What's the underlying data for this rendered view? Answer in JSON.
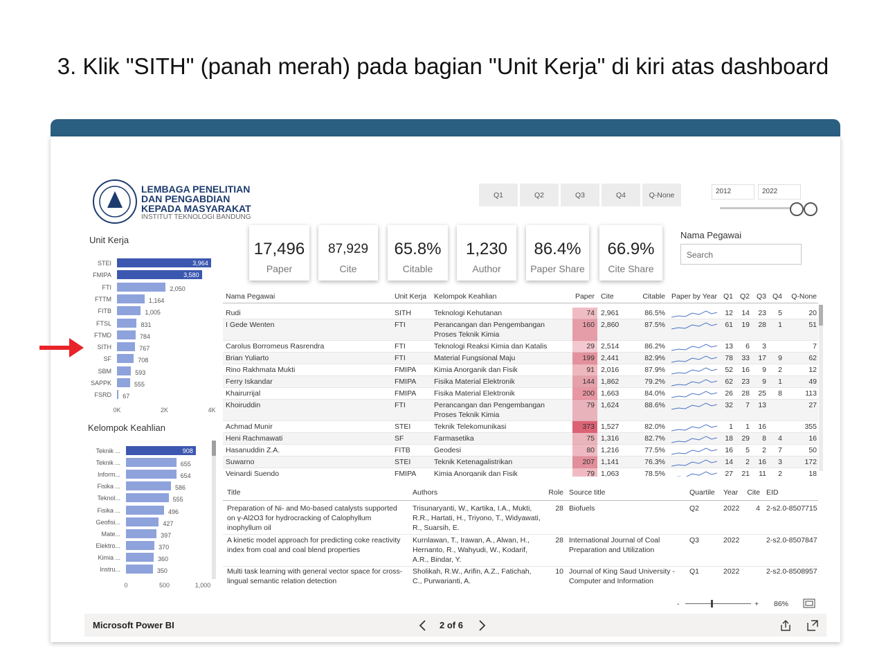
{
  "instruction": "3. Klik \"SITH\" (panah merah) pada bagian \"Unit Kerja\" di kiri atas dashboard",
  "logo": {
    "line1": "LEMBAGA PENELITIAN",
    "line2": "DAN PENGABDIAN",
    "line3": "KEPADA MASYARAKAT",
    "line4": "INSTITUT TEKNOLOGI BANDUNG"
  },
  "quartile_filter": [
    "Q1",
    "Q2",
    "Q3",
    "Q4",
    "Q-None"
  ],
  "year_range": [
    "2012",
    "2022"
  ],
  "cards": [
    {
      "value": "17,496",
      "label": "Paper"
    },
    {
      "value": "87,929",
      "label": "Cite"
    },
    {
      "value": "65.8%",
      "label": "Citable"
    },
    {
      "value": "1,230",
      "label": "Author"
    },
    {
      "value": "86.4%",
      "label": "Paper Share"
    },
    {
      "value": "66.9%",
      "label": "Cite Share"
    }
  ],
  "search": {
    "title": "Nama Pegawai",
    "placeholder": "Search"
  },
  "chart_data": [
    {
      "type": "bar",
      "orientation": "horizontal",
      "title": "Unit Kerja",
      "categories": [
        "STEI",
        "FMIPA",
        "FTI",
        "FTTM",
        "FITB",
        "FTSL",
        "FTMD",
        "SITH",
        "SF",
        "SBM",
        "SAPPK",
        "FSRD"
      ],
      "values": [
        3964,
        3580,
        2050,
        1164,
        1005,
        831,
        784,
        767,
        708,
        593,
        555,
        67
      ],
      "value_labels": [
        "3,964",
        "3,580",
        "2,050",
        "1,164",
        "1,005",
        "831",
        "784",
        "767",
        "708",
        "593",
        "555",
        "67"
      ],
      "colors": [
        "#3b57b0",
        "#3b57b0",
        "#8ea2dc",
        "#8ea2dc",
        "#8ea2dc",
        "#8ea2dc",
        "#8ea2dc",
        "#8ea2dc",
        "#8ea2dc",
        "#8ea2dc",
        "#8ea2dc",
        "#8ea2dc"
      ],
      "xlim": [
        0,
        4000
      ],
      "xticks": [
        {
          "value": 0,
          "label": "0K"
        },
        {
          "value": 2000,
          "label": "2K"
        },
        {
          "value": 4000,
          "label": "4K"
        }
      ]
    },
    {
      "type": "bar",
      "orientation": "horizontal",
      "title": "Kelompok Keahlian",
      "categories": [
        "Teknik ...",
        "Teknik ...",
        "Inform...",
        "Fisika ...",
        "Teknol...",
        "Fisika ...",
        "Geofisi...",
        "Mate...",
        "Elektro...",
        "Kimia ...",
        "Instru..."
      ],
      "values": [
        908,
        655,
        654,
        586,
        555,
        496,
        427,
        397,
        370,
        360,
        350
      ],
      "colors": [
        "#3b57b0",
        "#8ea2dc",
        "#8ea2dc",
        "#8ea2dc",
        "#8ea2dc",
        "#8ea2dc",
        "#8ea2dc",
        "#8ea2dc",
        "#8ea2dc",
        "#8ea2dc",
        "#8ea2dc"
      ],
      "xlim": [
        0,
        1000
      ],
      "xticks": [
        0,
        500,
        {
          "value": 1000,
          "label": "1,000"
        }
      ]
    }
  ],
  "pegawai_table": {
    "columns": [
      "Nama Pegawai",
      "Unit Kerja",
      "Kelompok Keahlian",
      "Paper",
      "Cite",
      "Citable",
      "Paper by Year",
      "Q1",
      "Q2",
      "Q3",
      "Q4",
      "Q-None"
    ],
    "rows": [
      [
        "Rudi",
        "SITH",
        "Teknologi Kehutanan",
        74,
        "2,961",
        "86.5%",
        12,
        14,
        23,
        5,
        20
      ],
      [
        "I Gede Wenten",
        "FTI",
        "Perancangan dan Pengembangan Proses Teknik Kimia",
        160,
        "2,860",
        "87.5%",
        61,
        19,
        28,
        1,
        51
      ],
      [
        "Carolus Borromeus Rasrendra",
        "FTI",
        "Teknologi Reaksi Kimia dan Katalis",
        29,
        "2,514",
        "86.2%",
        13,
        6,
        3,
        null,
        7
      ],
      [
        "Brian Yuliarto",
        "FTI",
        "Material Fungsional Maju",
        199,
        "2,441",
        "82.9%",
        78,
        33,
        17,
        9,
        62
      ],
      [
        "Rino Rakhmata Mukti",
        "FMIPA",
        "Kimia Anorganik dan Fisik",
        91,
        "2,016",
        "87.9%",
        52,
        16,
        9,
        2,
        12
      ],
      [
        "Ferry Iskandar",
        "FMIPA",
        "Fisika Material Elektronik",
        144,
        "1,862",
        "79.2%",
        62,
        23,
        9,
        1,
        49
      ],
      [
        "Khairurrijal",
        "FMIPA",
        "Fisika Material Elektronik",
        200,
        "1,663",
        "84.0%",
        26,
        28,
        25,
        8,
        113
      ],
      [
        "Khoiruddin",
        "FTI",
        "Perancangan dan Pengembangan Proses Teknik Kimia",
        79,
        "1,624",
        "88.6%",
        32,
        7,
        13,
        null,
        27
      ],
      [
        "Achmad Munir",
        "STEI",
        "Teknik Telekomunikasi",
        373,
        "1,527",
        "82.0%",
        1,
        1,
        16,
        null,
        355
      ],
      [
        "Heni Rachmawati",
        "SF",
        "Farmasetika",
        75,
        "1,316",
        "82.7%",
        18,
        29,
        8,
        4,
        16
      ],
      [
        "Hasanuddin Z.A.",
        "FITB",
        "Geodesi",
        80,
        "1,216",
        "77.5%",
        16,
        5,
        2,
        7,
        50
      ],
      [
        "Suwarno",
        "STEI",
        "Teknik Ketenagalistrikan",
        207,
        "1,141",
        "76.3%",
        14,
        2,
        16,
        3,
        172
      ],
      [
        "Veinardi Suendo",
        "FMIPA",
        "Kimia Anorganik dan Fisik",
        79,
        "1,063",
        "78.5%",
        27,
        21,
        11,
        2,
        18
      ]
    ]
  },
  "paper_table": {
    "columns": [
      "Title",
      "Authors",
      "Role",
      "Source title",
      "Quartile",
      "Year",
      "Cite",
      "EID"
    ],
    "rows": [
      [
        "Preparation of Ni- and Mo-based catalysts supported on γ-Al2O3 for hydrocracking of Calophyllum inophyllum oil",
        "Trisunaryanti, W., Kartika, I.A., Mukti, R.R., Hartati, H., Triyono, T., Widyawati, R., Suarsih, E.",
        28,
        "Biofuels",
        "Q2",
        2022,
        4,
        "2-s2.0-8507715"
      ],
      [
        "A kinetic model approach for predicting coke reactivity index from coal and coal blend properties",
        "Kurnlawan, T., Irawan, A., Alwan, H., Hernanto, R., Wahyudi, W., Kodarif, A.R., Bindar, Y.",
        28,
        "International Journal of Coal Preparation and Utilization",
        "Q3",
        2022,
        null,
        "2-s2.0-8507847"
      ],
      [
        "Multi task learning with general vector space for cross-lingual semantic relation detection",
        "Sholikah, R.W., Arifin, A.Z., Fatichah, C., Purwarianti, A.",
        10,
        "Journal of King Saud University - Computer and Information",
        "Q1",
        2022,
        null,
        "2-s2.0-8508957"
      ]
    ]
  },
  "zoom": {
    "minus": "-",
    "plus": "+",
    "value": "86%"
  },
  "footer": {
    "brand": "Microsoft Power BI",
    "page": "2 of 6"
  }
}
